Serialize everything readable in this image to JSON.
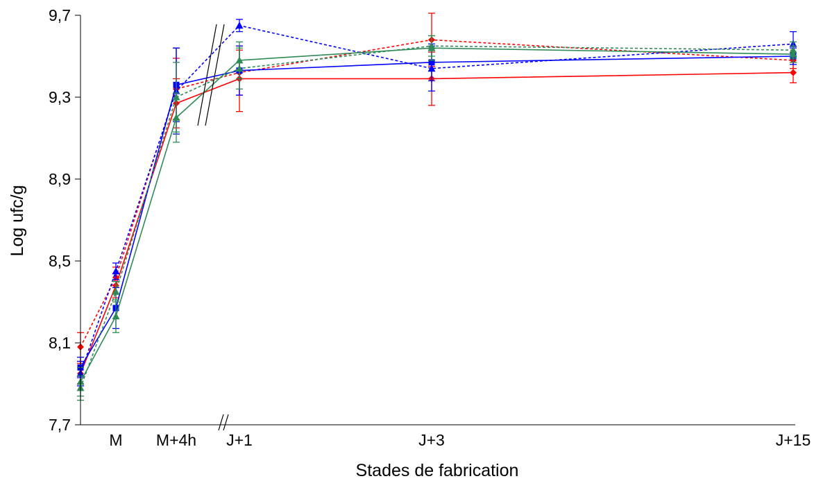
{
  "chart_data": {
    "type": "line",
    "xlabel": "Stades de fabrication",
    "ylabel": "Log ufc/g",
    "ylim": [
      7.7,
      9.7
    ],
    "yticks": [
      "7,7",
      "8,1",
      "8,5",
      "8,9",
      "9,3",
      "9,7"
    ],
    "categories": [
      "",
      "M",
      "M+4h",
      "J+1",
      "J+3",
      "J+15"
    ],
    "axis_break": "between M+4h and J+1",
    "legend": "none",
    "grid": false,
    "series": [
      {
        "style": "solid",
        "color": "#ff0000",
        "marker": "diamond",
        "values": [
          7.95,
          8.38,
          9.27,
          9.39,
          9.39,
          9.42
        ],
        "errors": [
          0.05,
          0.06,
          0.12,
          0.16,
          0.13,
          0.05
        ]
      },
      {
        "style": "dotted",
        "color": "#ff0000",
        "marker": "diamond",
        "values": [
          8.08,
          8.42,
          9.34,
          9.42,
          9.58,
          9.48
        ],
        "errors": [
          0.07,
          0.05,
          0.15,
          0.11,
          0.13,
          0.04
        ]
      },
      {
        "style": "solid",
        "color": "#0000ff",
        "marker": "square",
        "values": [
          7.98,
          8.27,
          9.36,
          9.43,
          9.47,
          9.5
        ],
        "errors": [
          0.05,
          0.1,
          0.18,
          0.12,
          0.09,
          0.04
        ]
      },
      {
        "style": "dotted",
        "color": "#0000ff",
        "marker": "triangle",
        "values": [
          7.95,
          8.45,
          9.33,
          9.65,
          9.44,
          9.56
        ],
        "errors": [
          0.06,
          0.04,
          0.21,
          0.03,
          0.11,
          0.06
        ]
      },
      {
        "style": "solid",
        "color": "#2e8b57",
        "marker": "triangle",
        "values": [
          7.91,
          8.23,
          9.2,
          9.48,
          9.54,
          9.51
        ],
        "errors": [
          0.07,
          0.08,
          0.12,
          0.09,
          0.06,
          0.04
        ]
      },
      {
        "style": "dotted",
        "color": "#2e8b57",
        "marker": "triangle",
        "values": [
          7.88,
          8.35,
          9.3,
          9.44,
          9.55,
          9.53
        ],
        "errors": [
          0.06,
          0.05,
          0.17,
          0.1,
          0.05,
          0.04
        ]
      }
    ]
  }
}
